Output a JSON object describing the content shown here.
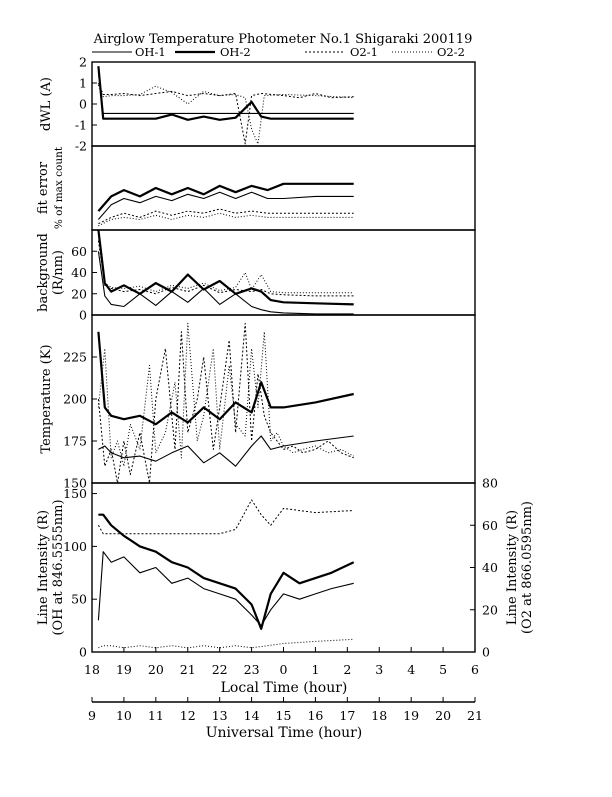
{
  "title": "Airglow Temperature Photometer No.1  Shigaraki  200119",
  "legend": [
    {
      "name": "OH-1",
      "color": "#000000",
      "width": 1.1,
      "dash": ""
    },
    {
      "name": "OH-2",
      "color": "#000000",
      "width": 2.2,
      "dash": ""
    },
    {
      "name": "O2-1",
      "color": "#000000",
      "width": 1.0,
      "dash": "2,2"
    },
    {
      "name": "O2-2",
      "color": "#000000",
      "width": 1.0,
      "dash": "1,2"
    }
  ],
  "axes": {
    "local_time_label": "Local Time (hour)",
    "local_ticks": [
      "18",
      "19",
      "20",
      "21",
      "22",
      "23",
      "0",
      "1",
      "2",
      "3",
      "4",
      "5",
      "6"
    ],
    "ut_label": "Universal Time (hour)",
    "ut_ticks": [
      "9",
      "10",
      "11",
      "12",
      "13",
      "14",
      "15",
      "16",
      "17",
      "18",
      "19",
      "20",
      "21"
    ]
  },
  "chart_data": [
    {
      "type": "line",
      "ylabel": "dWL (A)",
      "ylim": [
        -2,
        2
      ],
      "yticks": [
        "2",
        "1",
        "0",
        "-1",
        "-2"
      ],
      "x_units": "local time (hour, 18 = evening)",
      "series": [
        {
          "name": "OH-1",
          "x": [
            18.2,
            18.35,
            18.6,
            19.0,
            20.0,
            21.0,
            22.0,
            23.0,
            24.0,
            25.0,
            26.2
          ],
          "y": [
            1.5,
            -0.45,
            -0.45,
            -0.45,
            -0.45,
            -0.45,
            -0.45,
            -0.45,
            -0.45,
            -0.45,
            -0.45
          ]
        },
        {
          "name": "OH-2",
          "x": [
            18.2,
            18.35,
            18.6,
            19.0,
            19.5,
            20.0,
            20.5,
            21.0,
            21.5,
            22.0,
            22.5,
            22.8,
            23.0,
            23.3,
            23.6,
            24.0,
            25.0,
            26.2
          ],
          "y": [
            1.8,
            -0.7,
            -0.7,
            -0.7,
            -0.7,
            -0.7,
            -0.5,
            -0.75,
            -0.6,
            -0.75,
            -0.65,
            -0.2,
            0.1,
            -0.6,
            -0.7,
            -0.7,
            -0.7,
            -0.7
          ]
        },
        {
          "name": "O2-1",
          "x": [
            18.2,
            18.35,
            18.6,
            19.0,
            19.5,
            20.0,
            20.5,
            21.0,
            21.5,
            22.0,
            22.5,
            22.8,
            23.0,
            23.3,
            24.0,
            24.5,
            25.0,
            25.5,
            26.2
          ],
          "y": [
            1.0,
            0.45,
            0.45,
            0.5,
            0.4,
            0.5,
            0.6,
            0.4,
            0.5,
            0.4,
            0.5,
            -1.9,
            0.4,
            0.5,
            0.4,
            0.3,
            0.5,
            0.3,
            0.35
          ]
        },
        {
          "name": "O2-2",
          "x": [
            18.2,
            18.35,
            18.6,
            19.0,
            19.5,
            20.0,
            20.5,
            21.0,
            21.5,
            22.0,
            22.5,
            22.8,
            23.0,
            23.2,
            23.4,
            24.0,
            25.0,
            26.2
          ],
          "y": [
            0.9,
            0.35,
            0.4,
            0.4,
            0.45,
            0.85,
            0.55,
            0.0,
            0.6,
            0.4,
            0.45,
            0.3,
            -1.2,
            -1.9,
            0.4,
            0.45,
            0.4,
            0.3
          ]
        }
      ]
    },
    {
      "type": "line",
      "ylabel_lines": [
        "fit error",
        "% of max count"
      ],
      "ylim": [
        0,
        4
      ],
      "yticks": [],
      "x_units": "local time (hour)",
      "series": [
        {
          "name": "OH-1",
          "x": [
            18.2,
            18.6,
            19.0,
            19.5,
            20.0,
            20.5,
            21.0,
            21.5,
            22.0,
            22.5,
            23.0,
            23.5,
            24.0,
            25.0,
            26.2
          ],
          "y": [
            0.5,
            1.2,
            1.5,
            1.3,
            1.6,
            1.4,
            1.7,
            1.5,
            1.8,
            1.5,
            1.8,
            1.5,
            1.5,
            1.6,
            1.6
          ]
        },
        {
          "name": "OH-2",
          "x": [
            18.2,
            18.6,
            19.0,
            19.5,
            20.0,
            20.5,
            21.0,
            21.5,
            22.0,
            22.5,
            23.0,
            23.5,
            24.0,
            25.0,
            26.2
          ],
          "y": [
            0.9,
            1.6,
            1.9,
            1.6,
            2.0,
            1.7,
            2.0,
            1.7,
            2.1,
            1.8,
            2.1,
            1.9,
            2.2,
            2.2,
            2.2
          ]
        },
        {
          "name": "O2-1",
          "x": [
            18.2,
            18.6,
            19.0,
            19.5,
            20.0,
            20.5,
            21.0,
            21.5,
            22.0,
            22.5,
            23.0,
            23.5,
            24.0,
            25.0,
            26.2
          ],
          "y": [
            0.3,
            0.6,
            0.8,
            0.6,
            0.9,
            0.7,
            0.9,
            0.8,
            1.0,
            0.8,
            0.9,
            0.8,
            0.8,
            0.8,
            0.8
          ]
        },
        {
          "name": "O2-2",
          "x": [
            18.2,
            18.6,
            19.0,
            19.5,
            20.0,
            20.5,
            21.0,
            21.5,
            22.0,
            22.5,
            23.0,
            23.5,
            24.0,
            25.0,
            26.2
          ],
          "y": [
            0.2,
            0.5,
            0.6,
            0.5,
            0.7,
            0.5,
            0.7,
            0.6,
            0.8,
            0.6,
            0.7,
            0.6,
            0.6,
            0.6,
            0.6
          ]
        }
      ]
    },
    {
      "type": "line",
      "ylabel_lines": [
        "background",
        "(R/nm)"
      ],
      "ylim": [
        0,
        80
      ],
      "yticks": [
        "0",
        "20",
        "40",
        "60"
      ],
      "x_units": "local time (hour)",
      "series": [
        {
          "name": "OH-1",
          "x": [
            18.2,
            18.4,
            18.6,
            19.0,
            19.5,
            20.0,
            20.5,
            21.0,
            21.5,
            22.0,
            22.5,
            23.0,
            23.3,
            23.6,
            24.0,
            25.0,
            26.2
          ],
          "y": [
            60,
            18,
            10,
            8,
            20,
            9,
            22,
            12,
            25,
            10,
            20,
            8,
            5,
            3,
            2,
            1,
            1
          ]
        },
        {
          "name": "OH-2",
          "x": [
            18.2,
            18.4,
            18.6,
            19.0,
            19.5,
            20.0,
            20.5,
            21.0,
            21.5,
            22.0,
            22.5,
            23.0,
            23.3,
            23.6,
            24.0,
            25.0,
            26.2
          ],
          "y": [
            80,
            30,
            22,
            28,
            20,
            30,
            22,
            38,
            24,
            32,
            20,
            25,
            22,
            14,
            12,
            11,
            10
          ]
        },
        {
          "name": "O2-1",
          "x": [
            18.2,
            18.4,
            18.6,
            19.0,
            19.5,
            20.0,
            20.5,
            21.0,
            21.5,
            22.0,
            22.5,
            23.0,
            23.3,
            23.6,
            24.0,
            25.0,
            26.2
          ],
          "y": [
            70,
            28,
            25,
            22,
            24,
            20,
            26,
            22,
            28,
            21,
            24,
            22,
            24,
            20,
            19,
            18,
            18
          ]
        },
        {
          "name": "O2-2",
          "x": [
            18.2,
            18.4,
            18.6,
            19.0,
            19.5,
            20.0,
            20.5,
            21.0,
            21.5,
            22.0,
            22.5,
            22.8,
            23.0,
            23.3,
            23.6,
            24.0,
            25.0,
            26.2
          ],
          "y": [
            75,
            30,
            26,
            25,
            27,
            22,
            28,
            25,
            30,
            23,
            26,
            40,
            24,
            38,
            22,
            21,
            21,
            21
          ]
        }
      ]
    },
    {
      "type": "line",
      "ylabel": "Temperature (K)",
      "ylim": [
        150,
        250
      ],
      "yticks": [
        "150",
        "175",
        "200",
        "225"
      ],
      "x_units": "local time (hour)",
      "series": [
        {
          "name": "OH-1",
          "x": [
            18.2,
            18.4,
            18.6,
            19.0,
            19.5,
            20.0,
            20.5,
            21.0,
            21.5,
            22.0,
            22.5,
            23.0,
            23.3,
            23.6,
            24.0,
            25.0,
            26.2
          ],
          "y": [
            170,
            172,
            168,
            165,
            166,
            163,
            168,
            172,
            162,
            168,
            160,
            172,
            178,
            170,
            172,
            175,
            178
          ]
        },
        {
          "name": "OH-2",
          "x": [
            18.2,
            18.4,
            18.6,
            19.0,
            19.5,
            20.0,
            20.5,
            21.0,
            21.5,
            22.0,
            22.5,
            23.0,
            23.3,
            23.6,
            24.0,
            25.0,
            26.2
          ],
          "y": [
            240,
            195,
            190,
            188,
            190,
            185,
            192,
            186,
            195,
            188,
            198,
            192,
            210,
            195,
            195,
            198,
            203
          ]
        },
        {
          "name": "O2-1",
          "x": [
            18.2,
            18.4,
            18.6,
            18.8,
            19.0,
            19.2,
            19.5,
            19.8,
            20.0,
            20.3,
            20.6,
            20.8,
            21.0,
            21.3,
            21.5,
            21.8,
            22.0,
            22.3,
            22.5,
            22.8,
            23.0,
            23.2,
            23.4,
            23.6,
            23.8,
            24.0,
            24.3,
            24.6,
            25.0,
            25.4,
            25.8,
            26.2
          ],
          "y": [
            200,
            160,
            170,
            145,
            175,
            155,
            180,
            150,
            200,
            230,
            170,
            240,
            180,
            200,
            225,
            170,
            195,
            235,
            180,
            245,
            175,
            215,
            190,
            180,
            175,
            170,
            172,
            168,
            170,
            175,
            168,
            165
          ]
        },
        {
          "name": "O2-2",
          "x": [
            18.2,
            18.4,
            18.6,
            18.8,
            19.0,
            19.2,
            19.5,
            19.8,
            20.0,
            20.3,
            20.6,
            20.8,
            21.0,
            21.3,
            21.5,
            21.8,
            22.0,
            22.3,
            22.5,
            22.8,
            23.0,
            23.2,
            23.4,
            23.6,
            23.8,
            24.0,
            24.3,
            24.6,
            25.0,
            25.4,
            25.8,
            26.2
          ],
          "y": [
            195,
            230,
            165,
            175,
            160,
            185,
            170,
            220,
            168,
            180,
            210,
            165,
            245,
            175,
            190,
            230,
            170,
            220,
            185,
            178,
            230,
            195,
            240,
            175,
            180,
            172,
            168,
            170,
            172,
            168,
            170,
            166
          ]
        }
      ]
    },
    {
      "type": "line",
      "ylabel_lines": [
        "Line Intensity (R)",
        "(OH at 846.5555nm)"
      ],
      "ylim": [
        0,
        160
      ],
      "yticks": [
        "0",
        "50",
        "100",
        "150"
      ],
      "y2label_lines": [
        "Line Intensity (R)",
        "(O2 at 866.0595nm)"
      ],
      "y2lim": [
        0,
        80
      ],
      "y2ticks": [
        "0",
        "20",
        "40",
        "60",
        "80"
      ],
      "x_units": "local time (hour)",
      "series": [
        {
          "name": "OH-1",
          "axis": "left",
          "x": [
            18.2,
            18.35,
            18.6,
            19.0,
            19.5,
            20.0,
            20.5,
            21.0,
            21.5,
            22.0,
            22.5,
            23.0,
            23.3,
            23.6,
            24.0,
            24.5,
            25.0,
            25.5,
            26.2
          ],
          "y": [
            30,
            95,
            85,
            90,
            75,
            80,
            65,
            70,
            60,
            55,
            50,
            35,
            25,
            40,
            55,
            50,
            55,
            60,
            65
          ]
        },
        {
          "name": "OH-2",
          "axis": "left",
          "x": [
            18.2,
            18.35,
            18.6,
            19.0,
            19.5,
            20.0,
            20.5,
            21.0,
            21.5,
            22.0,
            22.5,
            23.0,
            23.3,
            23.6,
            24.0,
            24.5,
            25.0,
            25.5,
            26.2
          ],
          "y": [
            130,
            130,
            120,
            110,
            100,
            95,
            85,
            80,
            70,
            65,
            60,
            45,
            22,
            55,
            75,
            65,
            70,
            75,
            85
          ]
        },
        {
          "name": "O2-1",
          "axis": "right",
          "x": [
            18.2,
            18.35,
            18.6,
            19.0,
            19.5,
            20.0,
            20.5,
            21.0,
            21.5,
            22.0,
            22.5,
            23.0,
            23.3,
            23.6,
            24.0,
            25.0,
            26.2
          ],
          "y": [
            60,
            56,
            56,
            56,
            56,
            56,
            56,
            56,
            56,
            56,
            58,
            72,
            65,
            60,
            68,
            66,
            67
          ]
        },
        {
          "name": "O2-2",
          "axis": "right",
          "x": [
            18.2,
            18.35,
            18.6,
            19.0,
            19.5,
            20.0,
            20.5,
            21.0,
            21.5,
            22.0,
            22.5,
            23.0,
            23.5,
            24.0,
            25.0,
            26.2
          ],
          "y": [
            2,
            3,
            3,
            2,
            3,
            2,
            3,
            2,
            3,
            2,
            3,
            2,
            3,
            4,
            5,
            6
          ]
        }
      ]
    }
  ]
}
